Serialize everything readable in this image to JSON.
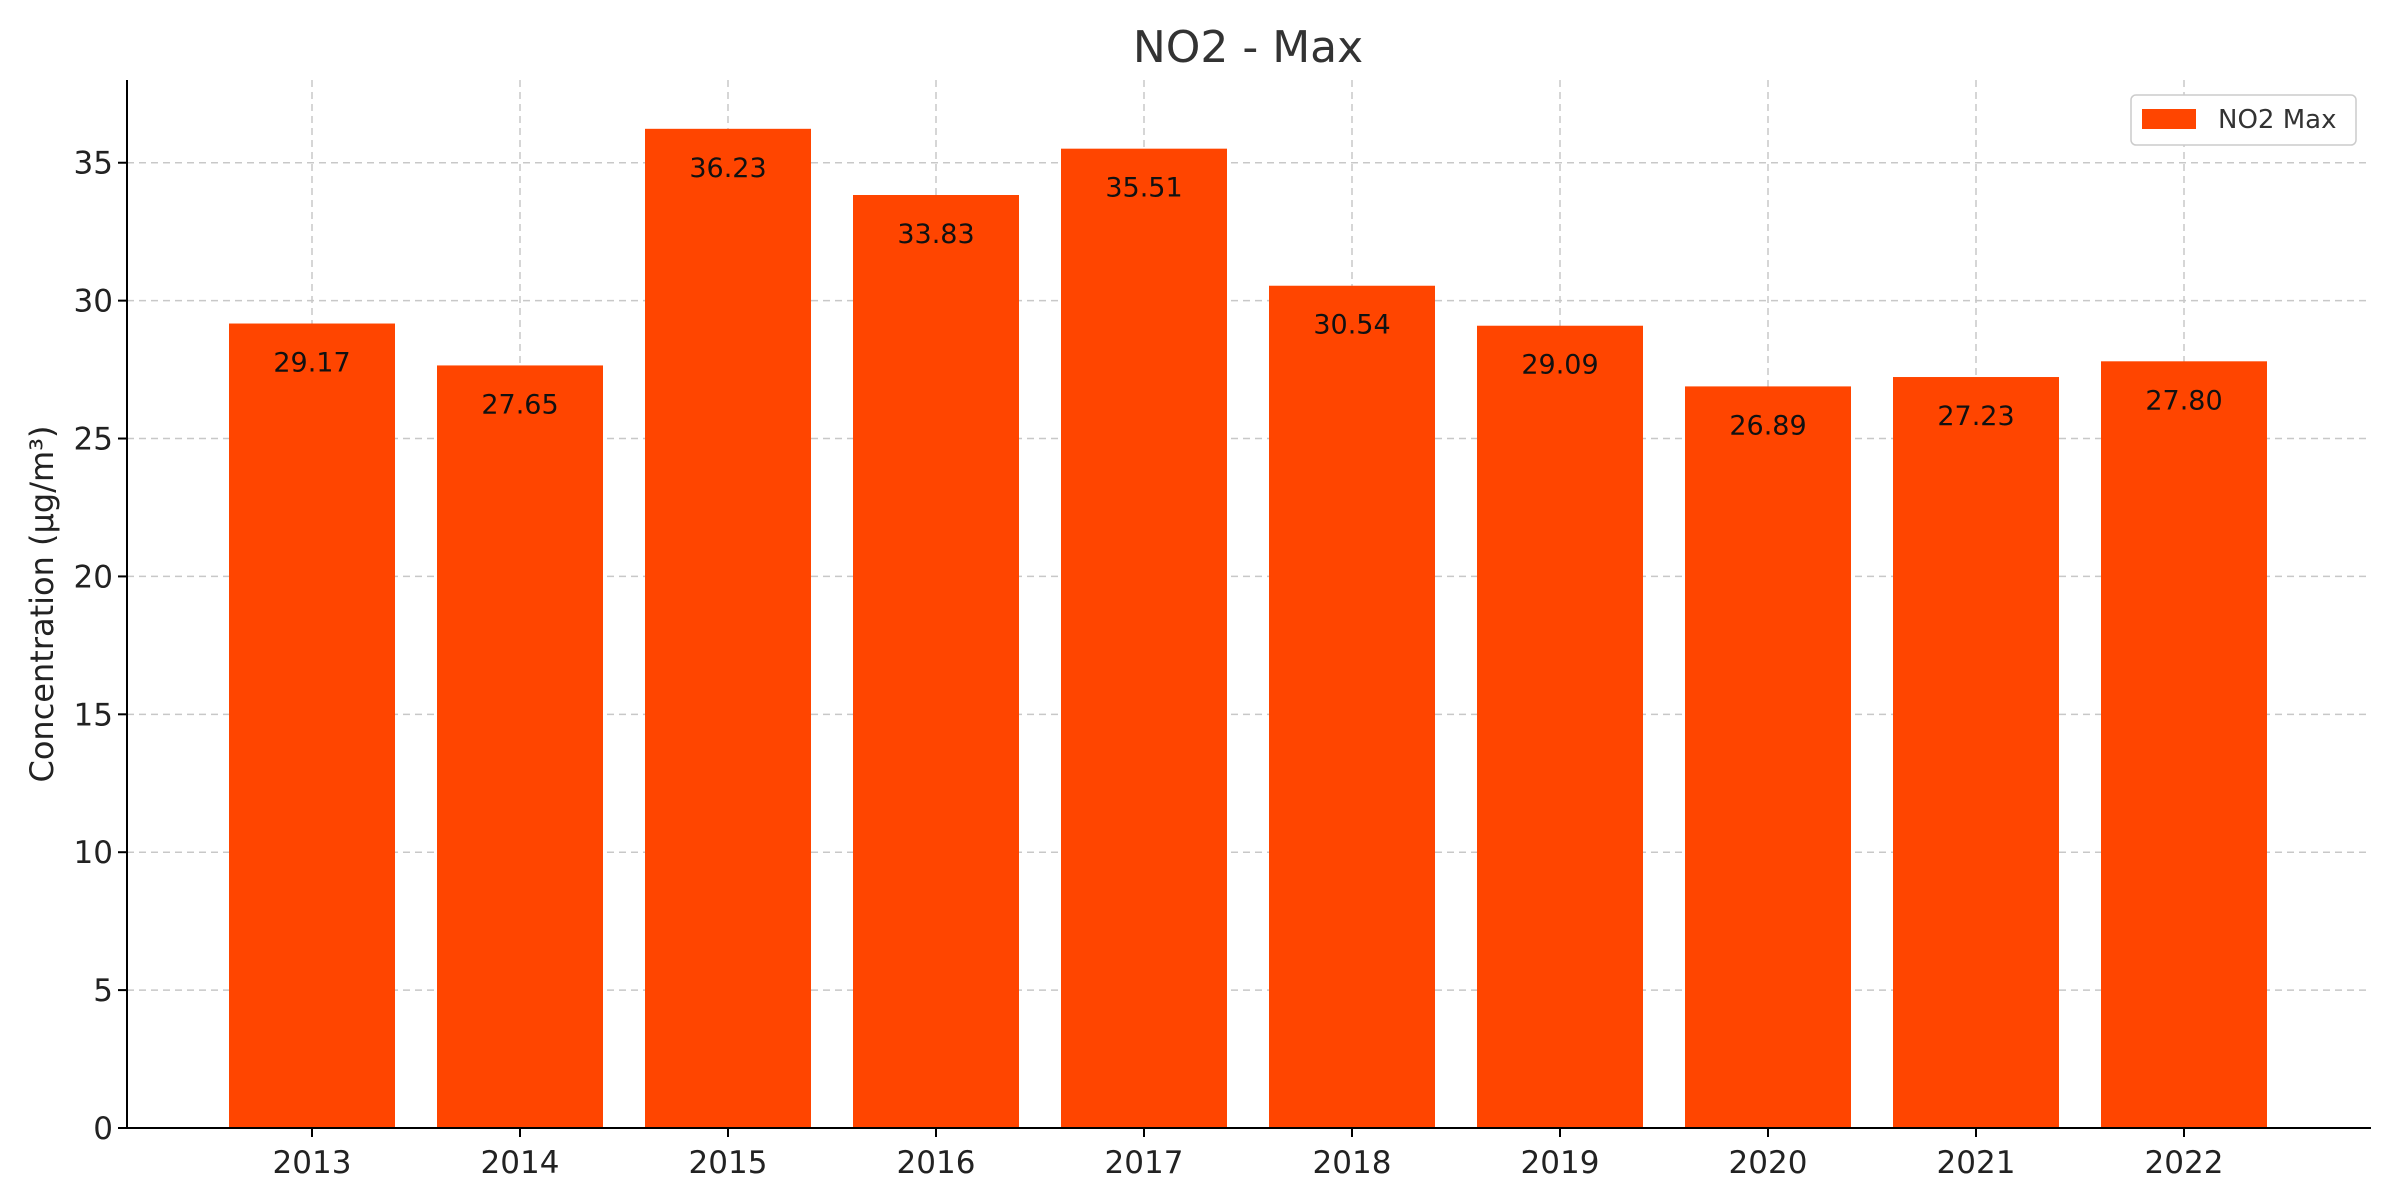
{
  "chart_data": {
    "type": "bar",
    "title": "NO2 - Max",
    "xlabel": "",
    "ylabel": "Concentration (µg/m³)",
    "categories": [
      "2013",
      "2014",
      "2015",
      "2016",
      "2017",
      "2018",
      "2019",
      "2020",
      "2021",
      "2022"
    ],
    "series": [
      {
        "name": "NO2 Max",
        "values": [
          29.17,
          27.65,
          36.23,
          33.83,
          35.51,
          30.54,
          29.09,
          26.89,
          27.23,
          27.8
        ],
        "data_labels": [
          "29.17",
          "27.65",
          "36.23",
          "33.83",
          "35.51",
          "30.54",
          "29.09",
          "26.89",
          "27.23",
          "27.80"
        ],
        "color": "#FF4500"
      }
    ],
    "ylim": [
      0,
      38
    ],
    "yticks": [
      0,
      5,
      10,
      15,
      20,
      25,
      30,
      35
    ],
    "grid": true,
    "legend_position": "top-right"
  }
}
